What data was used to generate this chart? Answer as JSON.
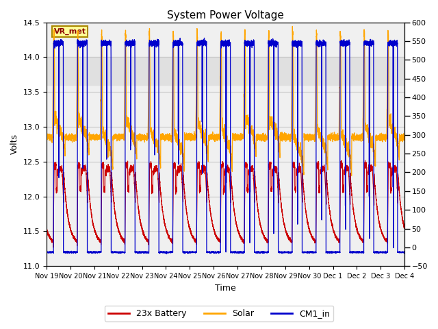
{
  "title": "System Power Voltage",
  "xlabel": "Time",
  "ylabel_left": "Volts",
  "ylim_left": [
    11.0,
    14.5
  ],
  "ylim_right": [
    -50,
    600
  ],
  "yticks_left": [
    11.0,
    11.5,
    12.0,
    12.5,
    13.0,
    13.5,
    14.0,
    14.5
  ],
  "yticks_right": [
    -50,
    0,
    50,
    100,
    150,
    200,
    250,
    300,
    350,
    400,
    450,
    500,
    550,
    600
  ],
  "shaded_band": [
    13.6,
    14.0
  ],
  "colors": {
    "battery": "#CC0000",
    "solar": "#FFA500",
    "cm1_in": "#0000CC",
    "shaded_band": "#E0E0E0",
    "vr_met_box_bg": "#FFFF99",
    "vr_met_box_edge": "#AA8800",
    "grid": "#C8C8C8",
    "bg": "#F0F0F0"
  },
  "legend_labels": [
    "23x Battery",
    "Solar",
    "CM1_in"
  ],
  "annotation_text": "VR_met",
  "n_days": 15,
  "tick_labels": [
    "Nov 19",
    "Nov 20",
    "Nov 21",
    "Nov 22",
    "Nov 23",
    "Nov 24",
    "Nov 25",
    "Nov 26",
    "Nov 27",
    "Nov 28",
    "Nov 29",
    "Nov 30",
    "Dec 1",
    "Dec 2",
    "Dec 3",
    "Dec 4"
  ]
}
